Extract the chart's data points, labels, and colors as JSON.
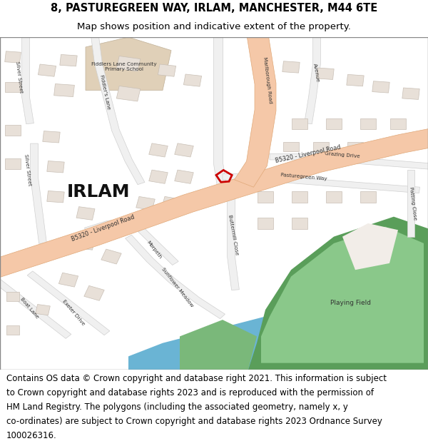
{
  "title_line1": "8, PASTUREGREEN WAY, IRLAM, MANCHESTER, M44 6TE",
  "title_line2": "Map shows position and indicative extent of the property.",
  "footer_lines": [
    "Contains OS data © Crown copyright and database right 2021. This information is subject",
    "to Crown copyright and database rights 2023 and is reproduced with the permission of",
    "HM Land Registry. The polygons (including the associated geometry, namely x, y",
    "co-ordinates) are subject to Crown copyright and database rights 2023 Ordnance Survey",
    "100026316."
  ],
  "title_fontsize": 10.5,
  "footer_fontsize": 8.5,
  "title_bg": "#ffffff",
  "footer_bg": "#ffffff",
  "map_bg": "#f2ede8",
  "fig_width": 6.0,
  "fig_height": 6.25,
  "dpi": 100,
  "road_salmon": "#f5c8a8",
  "road_salmon_edge": "#e0a878",
  "road_white": "#f0f0f0",
  "road_white_edge": "#d0d0d0",
  "building_color": "#e8e0d8",
  "building_edge": "#c8bfb5",
  "green_dark": "#5a9e5a",
  "green_mid": "#7ab87a",
  "green_light": "#8ac88a",
  "water_color": "#6ab4d4",
  "highlight_color": "#cc0000",
  "school_color": "#e0d0b8",
  "school_edge": "#c0b098"
}
